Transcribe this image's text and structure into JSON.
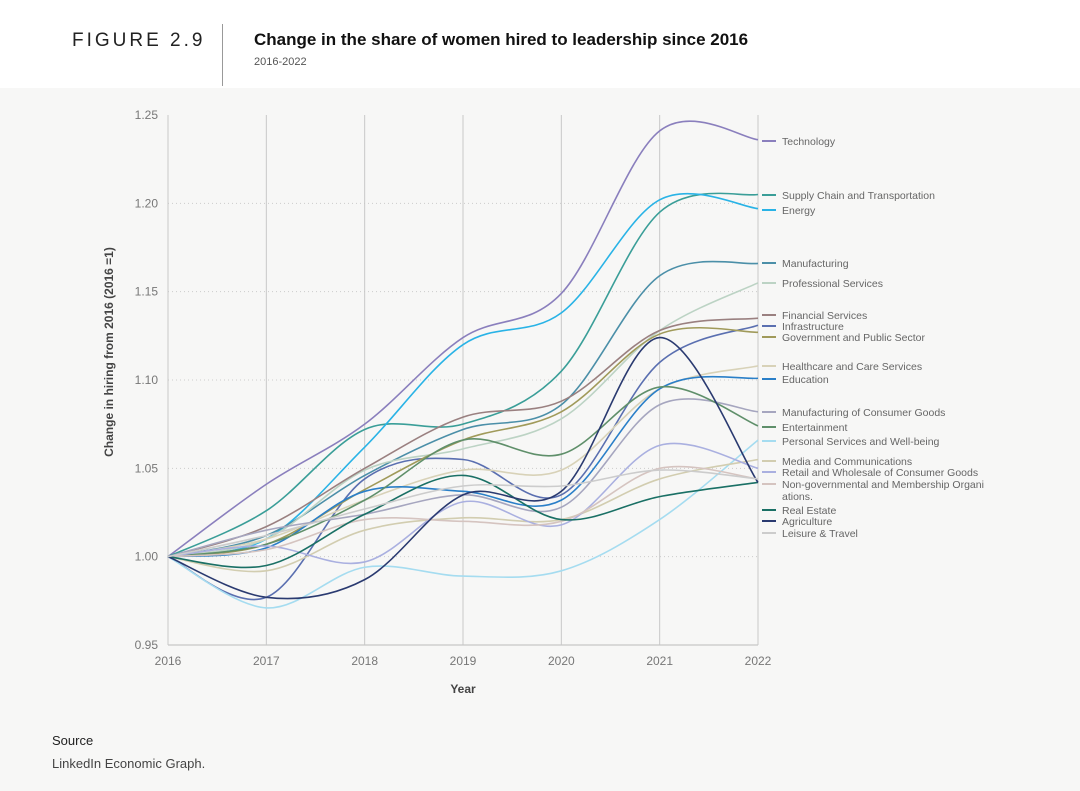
{
  "header": {
    "figure": "FIGURE 2.9",
    "title": "Change in the share of women hired to leadership since 2016",
    "subtitle": "2016-2022"
  },
  "source": {
    "label": "Source",
    "text": "LinkedIn Economic Graph."
  },
  "chart_data": {
    "type": "line",
    "xlabel": "Year",
    "ylabel": "Change in hiring from 2016 (2016 =1)",
    "x": [
      2016,
      2017,
      2018,
      2019,
      2020,
      2021,
      2022
    ],
    "ylim": [
      0.95,
      1.25
    ],
    "yticks": [
      "0.95",
      "1.00",
      "1.05",
      "1.10",
      "1.15",
      "1.20",
      "1.25"
    ],
    "grid": true,
    "legend": "right",
    "series": [
      {
        "name": "Technology",
        "color": "#8a7fbd",
        "values": [
          1,
          1.041,
          1.075,
          1.124,
          1.149,
          1.241,
          1.236
        ]
      },
      {
        "name": "Supply Chain and Transportation",
        "color": "#3a9e98",
        "values": [
          1,
          1.026,
          1.072,
          1.075,
          1.105,
          1.195,
          1.205
        ]
      },
      {
        "name": "Energy",
        "color": "#29b3e6",
        "values": [
          1,
          1.01,
          1.062,
          1.12,
          1.138,
          1.202,
          1.197
        ]
      },
      {
        "name": "Manufacturing",
        "color": "#4b8fa8",
        "values": [
          1,
          1.012,
          1.046,
          1.072,
          1.086,
          1.159,
          1.166
        ]
      },
      {
        "name": "Professional Services",
        "color": "#bcd3c4",
        "values": [
          1,
          1.01,
          1.049,
          1.061,
          1.078,
          1.128,
          1.155
        ]
      },
      {
        "name": "Financial Services",
        "color": "#9a8080",
        "values": [
          1,
          1.017,
          1.05,
          1.079,
          1.088,
          1.128,
          1.135
        ]
      },
      {
        "name": "Infrastructure",
        "color": "#5a6fb0",
        "values": [
          1,
          0.977,
          1.044,
          1.055,
          1.035,
          1.11,
          1.131
        ]
      },
      {
        "name": "Government and Public Sector",
        "color": "#a09a5a",
        "values": [
          1,
          1.007,
          1.038,
          1.066,
          1.082,
          1.126,
          1.127
        ]
      },
      {
        "name": "Healthcare and Care Services",
        "color": "#d8d2b8",
        "values": [
          1,
          1.01,
          1.032,
          1.049,
          1.049,
          1.095,
          1.108
        ]
      },
      {
        "name": "Education",
        "color": "#2a7fc8",
        "values": [
          1,
          1.005,
          1.037,
          1.037,
          1.032,
          1.095,
          1.101
        ]
      },
      {
        "name": "Manufacturing of Consumer Goods",
        "color": "#a6a6bf",
        "values": [
          1,
          1.015,
          1.024,
          1.035,
          1.028,
          1.086,
          1.082
        ]
      },
      {
        "name": "Entertainment",
        "color": "#5f8f6a",
        "values": [
          1,
          1.007,
          1.032,
          1.066,
          1.058,
          1.096,
          1.074
        ]
      },
      {
        "name": "Personal Services and Well-being",
        "color": "#a5dcf0",
        "values": [
          1,
          0.971,
          0.994,
          0.989,
          0.992,
          1.021,
          1.066
        ]
      },
      {
        "name": "Media and Communications",
        "color": "#d2cdb0",
        "values": [
          1,
          0.992,
          1.015,
          1.022,
          1.021,
          1.044,
          1.055
        ]
      },
      {
        "name": "Retail and Wholesale of Consumer Goods",
        "color": "#aab0e0",
        "values": [
          1,
          1.006,
          0.997,
          1.031,
          1.018,
          1.063,
          1.05
        ]
      },
      {
        "name": "Non-governmental and Membership Organizations.",
        "color": "#d5c4c0",
        "values": [
          1,
          1.004,
          1.021,
          1.02,
          1.02,
          1.05,
          1.044
        ]
      },
      {
        "name": "Real Estate",
        "color": "#1a7065",
        "values": [
          1,
          0.995,
          1.024,
          1.046,
          1.021,
          1.034,
          1.042
        ]
      },
      {
        "name": "Agriculture",
        "color": "#2a3a70",
        "values": [
          1,
          0.977,
          0.987,
          1.035,
          1.037,
          1.124,
          1.042
        ]
      },
      {
        "name": "Leisure & Travel",
        "color": "#cccccc",
        "values": [
          1,
          1.012,
          1.027,
          1.04,
          1.04,
          1.049,
          1.044
        ]
      }
    ]
  }
}
